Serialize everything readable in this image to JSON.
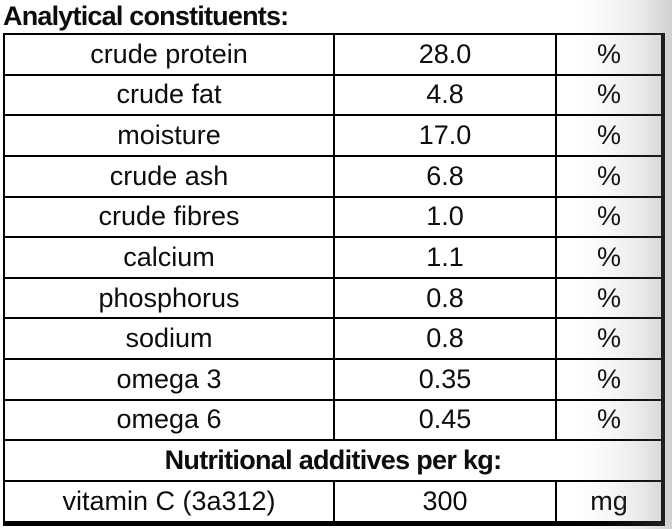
{
  "title": "Analytical constituents:",
  "table": {
    "rows": [
      {
        "name": "crude protein",
        "value": "28.0",
        "unit": "%"
      },
      {
        "name": "crude fat",
        "value": "4.8",
        "unit": "%"
      },
      {
        "name": "moisture",
        "value": "17.0",
        "unit": "%"
      },
      {
        "name": "crude ash",
        "value": "6.8",
        "unit": "%"
      },
      {
        "name": "crude fibres",
        "value": "1.0",
        "unit": "%"
      },
      {
        "name": "calcium",
        "value": "1.1",
        "unit": "%"
      },
      {
        "name": "phosphorus",
        "value": "0.8",
        "unit": "%"
      },
      {
        "name": "sodium",
        "value": "0.8",
        "unit": "%"
      },
      {
        "name": "omega 3",
        "value": "0.35",
        "unit": "%"
      },
      {
        "name": "omega 6",
        "value": "0.45",
        "unit": "%"
      }
    ],
    "section_header": "Nutritional additives per kg:",
    "additives": [
      {
        "name": "vitamin C (3a312)",
        "value": "300",
        "unit": "mg"
      }
    ]
  },
  "colors": {
    "border": "#000000",
    "text": "#0d0d0d",
    "background": "#ffffff"
  }
}
